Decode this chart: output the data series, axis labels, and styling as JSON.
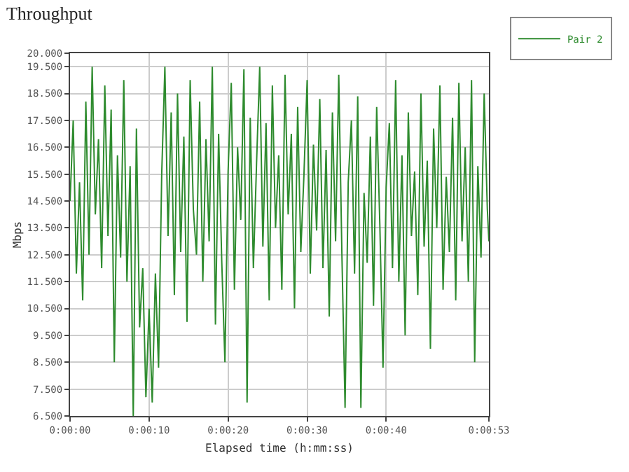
{
  "chart_data": {
    "type": "line",
    "title": "Throughput",
    "xlabel": "Elapsed time (h:mm:ss)",
    "ylabel": "Mbps",
    "x": [
      0,
      0.4,
      0.8,
      1.2,
      1.6,
      2.0,
      2.4,
      2.8,
      3.2,
      3.6,
      4.0,
      4.4,
      4.8,
      5.2,
      5.6,
      6.0,
      6.4,
      6.8,
      7.2,
      7.6,
      8.0,
      8.4,
      8.8,
      9.2,
      9.6,
      10.0,
      10.4,
      10.8,
      11.2,
      11.6,
      12.0,
      12.4,
      12.8,
      13.2,
      13.6,
      14.0,
      14.4,
      14.8,
      15.2,
      15.6,
      16.0,
      16.4,
      16.8,
      17.2,
      17.6,
      18.0,
      18.4,
      18.8,
      19.2,
      19.6,
      20.0,
      20.4,
      20.8,
      21.2,
      21.6,
      22.0,
      22.4,
      22.8,
      23.2,
      23.6,
      24.0,
      24.4,
      24.8,
      25.2,
      25.6,
      26.0,
      26.4,
      26.8,
      27.2,
      27.6,
      28.0,
      28.4,
      28.8,
      29.2,
      29.6,
      30.0,
      30.4,
      30.8,
      31.2,
      31.6,
      32.0,
      32.4,
      32.8,
      33.2,
      33.6,
      34.0,
      34.4,
      34.8,
      35.2,
      35.6,
      36.0,
      36.4,
      36.8,
      37.2,
      37.6,
      38.0,
      38.4,
      38.8,
      39.2,
      39.6,
      40.0,
      40.4,
      40.8,
      41.2,
      41.6,
      42.0,
      42.4,
      42.8,
      43.2,
      43.6,
      44.0,
      44.4,
      44.8,
      45.2,
      45.6,
      46.0,
      46.4,
      46.8,
      47.2,
      47.6,
      48.0,
      48.4,
      48.8,
      49.2,
      49.6,
      50.0,
      50.4,
      50.8,
      51.2,
      51.6,
      52.0,
      52.4,
      52.8,
      53
    ],
    "series": [
      {
        "name": "Pair 2",
        "color": "#2e8b2e",
        "values": [
          14.5,
          17.5,
          11.8,
          15.2,
          10.8,
          18.2,
          12.5,
          19.5,
          14.0,
          16.8,
          12.0,
          18.8,
          13.2,
          17.9,
          8.5,
          16.2,
          12.4,
          19.0,
          11.5,
          15.8,
          6.5,
          17.2,
          9.8,
          12.0,
          7.2,
          10.5,
          7.0,
          11.8,
          8.3,
          15.5,
          19.5,
          13.2,
          17.8,
          11.0,
          18.5,
          12.6,
          16.9,
          10.0,
          19.0,
          14.2,
          12.5,
          18.2,
          11.5,
          16.8,
          13.0,
          19.5,
          9.9,
          17.0,
          12.2,
          8.5,
          15.6,
          18.9,
          11.2,
          16.5,
          13.8,
          19.4,
          7.0,
          17.6,
          12.0,
          15.9,
          19.5,
          12.8,
          17.4,
          10.8,
          18.8,
          13.5,
          16.2,
          11.2,
          19.2,
          14.0,
          17.0,
          10.5,
          18.0,
          12.6,
          15.5,
          19.0,
          11.8,
          16.6,
          13.4,
          18.3,
          12.0,
          16.4,
          10.2,
          17.8,
          13.0,
          19.2,
          12.5,
          6.8,
          15.2,
          17.5,
          11.8,
          18.4,
          6.8,
          14.8,
          12.2,
          16.9,
          10.6,
          18.0,
          13.6,
          8.3,
          15.0,
          17.4,
          12.0,
          19.0,
          11.5,
          16.2,
          9.5,
          17.8,
          13.2,
          15.6,
          11.0,
          18.5,
          12.8,
          16.0,
          9.0,
          17.2,
          13.5,
          18.8,
          11.2,
          15.4,
          12.6,
          17.6,
          10.8,
          18.9,
          13.0,
          16.5,
          11.5,
          19.0,
          8.5,
          15.8,
          12.4,
          18.5,
          14.2,
          13.0
        ]
      }
    ],
    "xlim": [
      0,
      53
    ],
    "xticks": [
      {
        "value": 0,
        "label": "0:00:00"
      },
      {
        "value": 10,
        "label": "0:00:10"
      },
      {
        "value": 20,
        "label": "0:00:20"
      },
      {
        "value": 30,
        "label": "0:00:30"
      },
      {
        "value": 40,
        "label": "0:00:40"
      },
      {
        "value": 53,
        "label": "0:00:53"
      }
    ],
    "ylim": [
      6.5,
      20
    ],
    "yticks": [
      {
        "value": 6.5,
        "label": "6.500"
      },
      {
        "value": 7.5,
        "label": "7.500"
      },
      {
        "value": 8.5,
        "label": "8.500"
      },
      {
        "value": 9.5,
        "label": "9.500"
      },
      {
        "value": 10.5,
        "label": "10.500"
      },
      {
        "value": 11.5,
        "label": "11.500"
      },
      {
        "value": 12.5,
        "label": "12.500"
      },
      {
        "value": 13.5,
        "label": "13.500"
      },
      {
        "value": 14.5,
        "label": "14.500"
      },
      {
        "value": 15.5,
        "label": "15.500"
      },
      {
        "value": 16.5,
        "label": "16.500"
      },
      {
        "value": 17.5,
        "label": "17.500"
      },
      {
        "value": 18.5,
        "label": "18.500"
      },
      {
        "value": 19.5,
        "label": "19.500"
      },
      {
        "value": 20,
        "label": "20.000"
      }
    ],
    "grid": true,
    "legend": "top right",
    "marker": "none",
    "line_style": "solid"
  }
}
